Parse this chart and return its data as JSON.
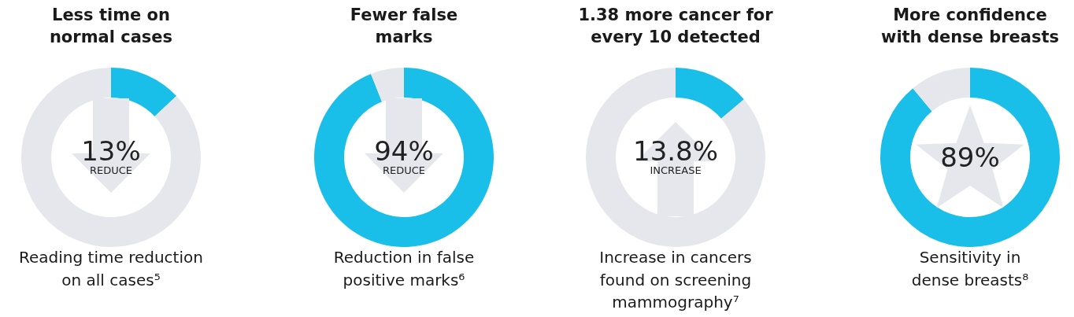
{
  "chart_data": [
    {
      "type": "donut",
      "title": "Less time on\nnormal cases",
      "categories": [
        null,
        null
      ],
      "values": [
        13,
        87
      ],
      "colors": [
        "#19bfe8",
        "#e6e7ec"
      ],
      "annotations": [
        "13%",
        "REDUCE",
        "Reading time reduction\non all cases⁵"
      ]
    },
    {
      "type": "donut",
      "title": "Fewer false\nmarks",
      "categories": [
        null,
        null
      ],
      "values": [
        94,
        6
      ],
      "colors": [
        "#19bfe8",
        "#e6e7ec"
      ],
      "annotations": [
        "94%",
        "REDUCE",
        "Reduction in false\npositive marks⁶"
      ]
    },
    {
      "type": "donut",
      "title": "1.38 more cancer for\nevery 10 detected",
      "categories": [
        null,
        null
      ],
      "values": [
        13.8,
        86.2
      ],
      "colors": [
        "#19bfe8",
        "#e6e7ec"
      ],
      "annotations": [
        "13.8%",
        "INCREASE",
        "Increase in cancers\nfound on screening\nmammography⁷"
      ]
    },
    {
      "type": "donut",
      "title": "More confidence\nwith dense breasts",
      "categories": [
        null,
        null
      ],
      "values": [
        89,
        11
      ],
      "colors": [
        "#19bfe8",
        "#e6e7ec"
      ],
      "annotations": [
        "89%",
        "Sensitivity in\ndense breasts⁸"
      ]
    }
  ]
}
